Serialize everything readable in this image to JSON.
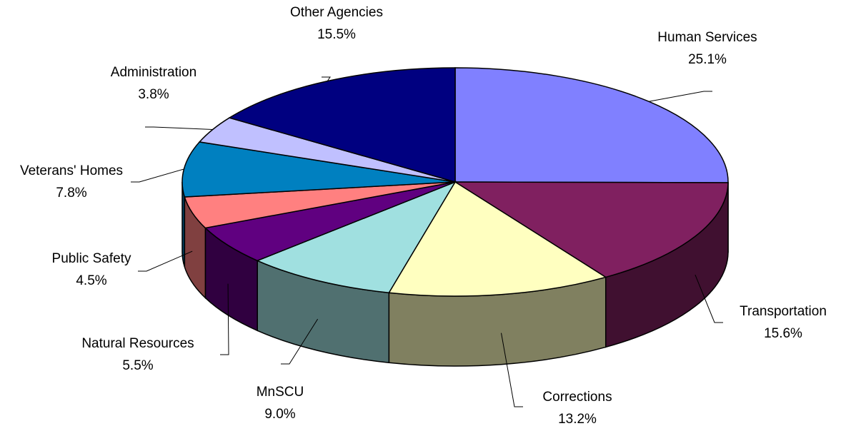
{
  "chart_data": {
    "type": "pie",
    "categories": [
      "Human Services",
      "Transportation",
      "Corrections",
      "MnSCU",
      "Natural Resources",
      "Public Safety",
      "Veterans' Homes",
      "Administration",
      "Other Agencies"
    ],
    "values": [
      25.1,
      15.6,
      13.2,
      9.0,
      5.5,
      4.5,
      7.8,
      3.8,
      15.5
    ],
    "value_labels": [
      "25.1%",
      "15.6%",
      "13.2%",
      "9.0%",
      "5.5%",
      "4.5%",
      "7.8%",
      "3.8%",
      "15.5%"
    ],
    "colors": [
      "#8080ff",
      "#802060",
      "#ffffc0",
      "#a0e0e0",
      "#600080",
      "#ff8080",
      "#0080c0",
      "#c0c0ff",
      "#000080"
    ]
  }
}
